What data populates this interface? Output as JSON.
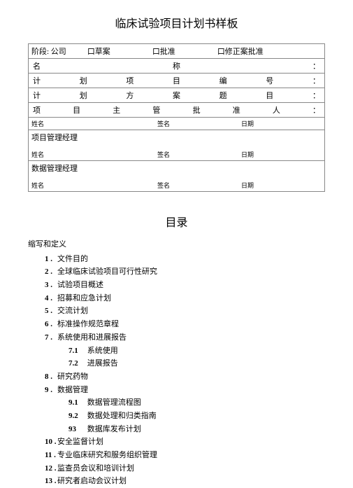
{
  "title": "临床试验项目计划书样板",
  "info": {
    "stage_label": "阶段: 公司",
    "checkboxes": [
      "口草案",
      "口批准",
      "口修正案批准"
    ],
    "rows": [
      [
        "名",
        "",
        "",
        "称",
        "",
        "",
        "："
      ],
      [
        "计",
        "划",
        "项",
        "目",
        "编",
        "号",
        "："
      ],
      [
        "计",
        "划",
        "方",
        "案",
        "题",
        "目",
        "："
      ],
      [
        "项",
        "目",
        "主",
        "管",
        "批",
        "准",
        "人",
        "："
      ]
    ],
    "sig_name": "姓名",
    "sig_sign": "签名",
    "sig_date": "日期",
    "pm_label": "项目管理经理",
    "dm_label": "数据管理经理"
  },
  "toc_title": "目录",
  "toc_header": "缩写和定义",
  "toc": [
    {
      "n": "1 .",
      "t": "文件目的"
    },
    {
      "n": "2 .",
      "t": "全球临床试验项目可行性研究"
    },
    {
      "n": "3 .",
      "t": "试验项目概述"
    },
    {
      "n": "4 .",
      "t": "招募和应急计划"
    },
    {
      "n": "5 .",
      "t": "交流计划"
    },
    {
      "n": "6 .",
      "t": "标准操作规范章程"
    },
    {
      "n": "7 .",
      "t": "系统使用和进展报告",
      "sub": [
        {
          "n": "7.1",
          "t": "系统使用"
        },
        {
          "n": "7.2",
          "t": "进展报告"
        }
      ]
    },
    {
      "n": "8 .",
      "t": "研究药物"
    },
    {
      "n": "9 .",
      "t": "数据管理",
      "sub": [
        {
          "n": "9.1",
          "t": "数据管理流程图"
        },
        {
          "n": "9.2",
          "t": "数据处理和归类指南"
        },
        {
          "n": "93",
          "t": "数据库发布计划"
        }
      ]
    },
    {
      "n": "10 .",
      "t": "安全监督计划"
    },
    {
      "n": "11 .",
      "t": "专业临床研究和服务组织管理"
    },
    {
      "n": "12 .",
      "t": "监查员会议和培训计划"
    },
    {
      "n": "13 .",
      "t": "研究者启动会议计划"
    }
  ]
}
